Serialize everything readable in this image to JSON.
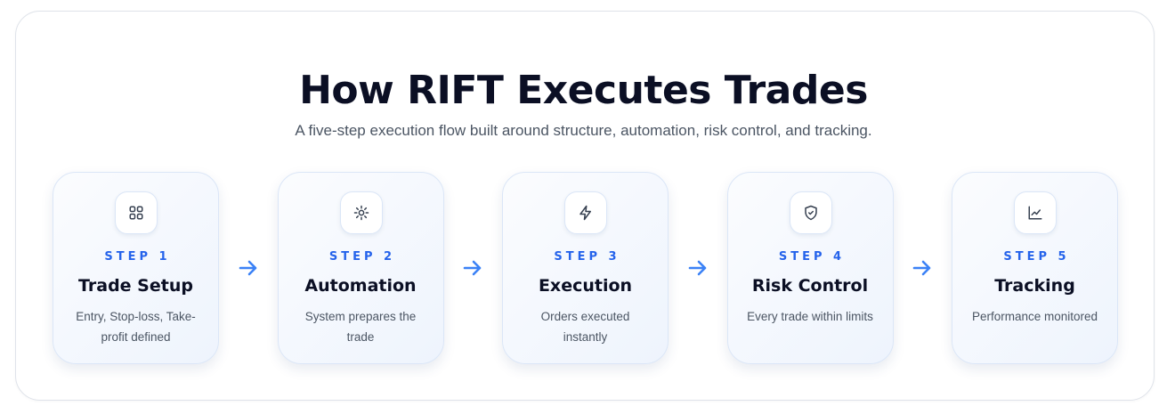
{
  "header": {
    "title": "How RIFT Executes Trades",
    "subtitle": "A five-step execution flow built around structure, automation, risk control, and tracking."
  },
  "accent": "#2563eb",
  "steps": [
    {
      "step": "STEP 1",
      "title": "Trade Setup",
      "desc": "Entry, Stop-loss, Take-profit defined",
      "icon": "grid-icon"
    },
    {
      "step": "STEP 2",
      "title": "Automation",
      "desc": "System prepares the trade",
      "icon": "sun-gear-icon"
    },
    {
      "step": "STEP 3",
      "title": "Execution",
      "desc": "Orders executed instantly",
      "icon": "lightning-icon"
    },
    {
      "step": "STEP 4",
      "title": "Risk Control",
      "desc": "Every trade within limits",
      "icon": "shield-check-icon"
    },
    {
      "step": "STEP 5",
      "title": "Tracking",
      "desc": "Performance monitored",
      "icon": "chart-line-icon"
    }
  ]
}
